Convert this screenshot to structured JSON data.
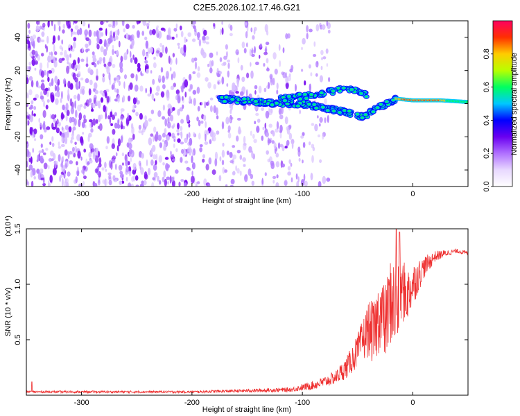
{
  "chart_data": [
    {
      "type": "heatmap",
      "title": "C2E5.2026.102.17.46.G21",
      "xlabel": "Height of straight line (km)",
      "ylabel": "Frequency (Hz)",
      "xlim": [
        -350,
        50
      ],
      "ylim": [
        -50,
        50
      ],
      "xticks": [
        -300,
        -200,
        -100,
        0
      ],
      "yticks": [
        -40,
        -20,
        0,
        20,
        40
      ],
      "grid": false,
      "colorbar": {
        "label": "Normalized spectral amplitude",
        "range": [
          0.0,
          1.0
        ],
        "ticks": [
          "0.0",
          "0.2",
          "0.4",
          "0.6",
          "0.8"
        ],
        "colormap": [
          "#ffffff",
          "#e8d8ff",
          "#b070ff",
          "#6a00f0",
          "#0000ff",
          "#00c8ff",
          "#00ff60",
          "#b8ff00",
          "#ffcc00",
          "#ff3000",
          "#ff0060"
        ]
      },
      "signal_trace": [
        {
          "x": -175,
          "y": 3
        },
        {
          "x": -160,
          "y": 2
        },
        {
          "x": -140,
          "y": 1
        },
        {
          "x": -120,
          "y": 0
        },
        {
          "x": -100,
          "y": 0
        },
        {
          "x": -80,
          "y": -3
        },
        {
          "x": -60,
          "y": -5
        },
        {
          "x": -45,
          "y": -8
        },
        {
          "x": -30,
          "y": -2
        },
        {
          "x": -15,
          "y": 3
        },
        {
          "x": 0,
          "y": 2
        },
        {
          "x": 25,
          "y": 2
        },
        {
          "x": 50,
          "y": 1
        }
      ],
      "upper_branch": [
        {
          "x": -120,
          "y": 3
        },
        {
          "x": -90,
          "y": 5
        },
        {
          "x": -70,
          "y": 8
        },
        {
          "x": -55,
          "y": 9
        },
        {
          "x": -40,
          "y": 5
        }
      ],
      "noise_extent_x": [
        -350,
        -75
      ]
    },
    {
      "type": "line",
      "xlabel": "Height of straight line (km)",
      "ylabel": "SNR (10 * v/v)",
      "y_multiplier": "(x10⁴)",
      "xlim": [
        -350,
        50
      ],
      "ylim": [
        0,
        1.5
      ],
      "xticks": [
        -300,
        -200,
        -100,
        0
      ],
      "yticks": [
        "0.5",
        "1.0",
        "1.5"
      ],
      "grid": false,
      "series": [
        {
          "color": "#ee3030",
          "x": [
            -350,
            -300,
            -250,
            -200,
            -150,
            -110,
            -100,
            -90,
            -80,
            -70,
            -60,
            -50,
            -40,
            -35,
            -30,
            -25,
            -20,
            -15,
            -10,
            -5,
            0,
            10,
            20,
            30,
            40,
            50
          ],
          "y": [
            0.03,
            0.03,
            0.03,
            0.03,
            0.04,
            0.05,
            0.07,
            0.09,
            0.12,
            0.16,
            0.25,
            0.4,
            0.6,
            0.55,
            0.75,
            0.65,
            0.85,
            0.8,
            0.95,
            0.9,
            1.0,
            1.15,
            1.25,
            1.28,
            1.3,
            1.28
          ],
          "amp": [
            0.01,
            0.01,
            0.01,
            0.01,
            0.015,
            0.02,
            0.03,
            0.04,
            0.05,
            0.06,
            0.1,
            0.15,
            0.25,
            0.3,
            0.35,
            0.35,
            0.4,
            0.45,
            0.3,
            0.25,
            0.2,
            0.1,
            0.05,
            0.03,
            0.02,
            0.02
          ]
        }
      ],
      "spikes": [
        {
          "x": -345,
          "y": 0.12
        },
        {
          "x": -15,
          "y": 1.5
        },
        {
          "x": -12,
          "y": 1.47
        }
      ]
    }
  ]
}
